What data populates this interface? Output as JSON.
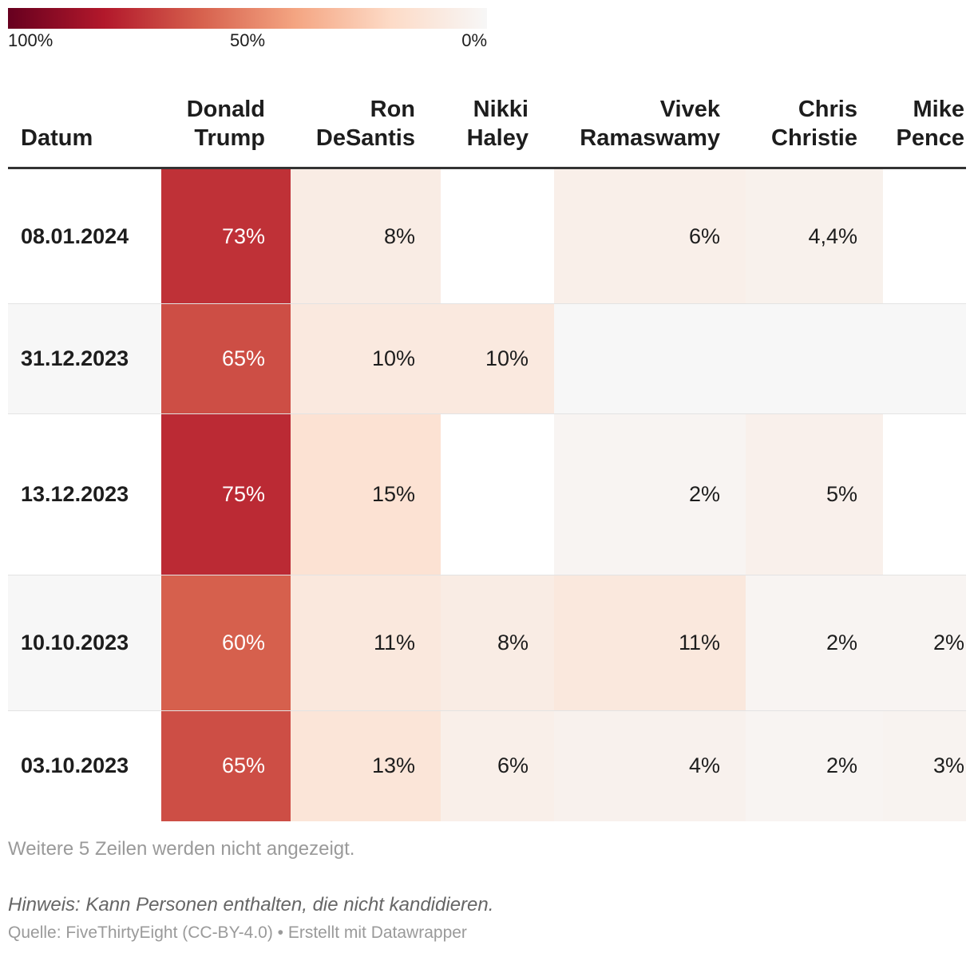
{
  "legend": {
    "labels": [
      "100%",
      "50%",
      "0%"
    ],
    "colors": [
      "#67001f",
      "#b2182b",
      "#d6604d",
      "#f4a582",
      "#fddbc7",
      "#f7f7f7"
    ]
  },
  "table": {
    "header": [
      "Datum",
      "Donald Trump",
      "Ron DeSantis",
      "Nikki Haley",
      "Vivek Ramaswamy",
      "Chris Christie",
      "Mike Pence"
    ],
    "rows": [
      [
        "08.01.2024",
        "73%",
        "8%",
        null,
        "6%",
        "4,4%",
        null
      ],
      [
        "31.12.2023",
        "65%",
        "10%",
        "10%",
        null,
        null,
        null
      ],
      [
        "13.12.2023",
        "75%",
        "15%",
        null,
        "2%",
        "5%",
        null
      ],
      [
        "10.10.2023",
        "60%",
        "11%",
        "8%",
        "11%",
        "2%",
        "2%"
      ],
      [
        "03.10.2023",
        "65%",
        "13%",
        "6%",
        "4%",
        "2%",
        "3%"
      ]
    ]
  },
  "footer": {
    "more_rows": "Weitere 5 Zeilen werden nicht angezeigt.",
    "note": "Hinweis: Kann Personen enthalten, die nicht kandidieren.",
    "source": "Quelle: FiveThirtyEight (CC-BY-4.0) • Erstellt mit Datawrapper"
  }
}
